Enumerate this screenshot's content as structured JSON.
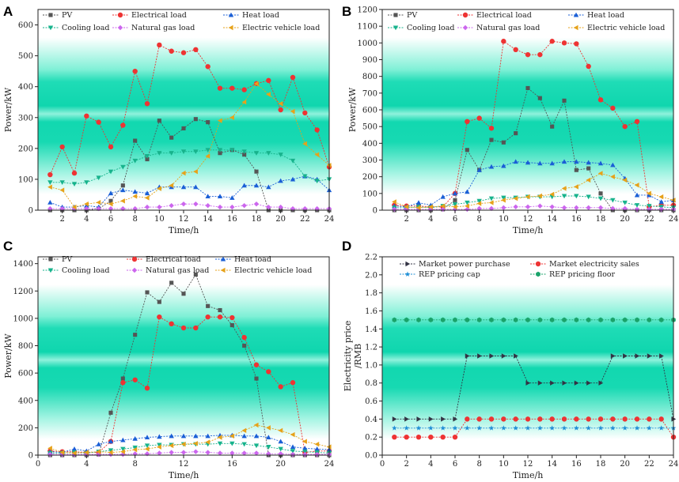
{
  "chart_data": [
    {
      "type": "line",
      "panel": "A",
      "xlabel": "Time/h",
      "ylabel": "Power/kW",
      "xlim": [
        0,
        24
      ],
      "ylim": [
        0,
        650
      ],
      "xticks": [
        "2",
        "4",
        "6",
        "8",
        "10",
        "12",
        "14",
        "16",
        "18",
        "20",
        "22",
        "24"
      ],
      "yticks": [
        "0",
        "100",
        "200",
        "300",
        "400",
        "500",
        "600"
      ],
      "x": [
        1,
        2,
        3,
        4,
        5,
        6,
        7,
        8,
        9,
        10,
        11,
        12,
        13,
        14,
        15,
        16,
        17,
        18,
        19,
        20,
        21,
        22,
        23,
        24
      ],
      "series": [
        {
          "name": "PV",
          "color": "#555555",
          "marker": "square",
          "values": [
            0,
            0,
            0,
            0,
            5,
            30,
            80,
            225,
            165,
            290,
            235,
            265,
            295,
            285,
            185,
            195,
            180,
            125,
            0,
            0,
            0,
            0,
            0,
            0
          ]
        },
        {
          "name": "Electrical load",
          "color": "#ee3333",
          "marker": "circle",
          "values": [
            115,
            205,
            120,
            305,
            285,
            205,
            275,
            450,
            345,
            535,
            515,
            510,
            520,
            465,
            395,
            395,
            390,
            410,
            420,
            325,
            430,
            315,
            260,
            140
          ]
        },
        {
          "name": "Heat load",
          "color": "#1a5fd6",
          "marker": "triangle-up",
          "values": [
            25,
            10,
            10,
            15,
            10,
            55,
            65,
            60,
            55,
            75,
            75,
            75,
            75,
            45,
            45,
            40,
            80,
            80,
            75,
            95,
            100,
            110,
            100,
            65
          ]
        },
        {
          "name": "Cooling load",
          "color": "#17b38c",
          "marker": "triangle-down",
          "values": [
            90,
            90,
            85,
            90,
            105,
            125,
            140,
            160,
            175,
            185,
            185,
            190,
            190,
            195,
            195,
            195,
            190,
            185,
            185,
            180,
            160,
            110,
            95,
            100
          ]
        },
        {
          "name": "Natural gas load",
          "color": "#cc66ee",
          "marker": "diamond",
          "values": [
            5,
            5,
            5,
            5,
            5,
            5,
            5,
            5,
            10,
            10,
            15,
            20,
            20,
            15,
            10,
            10,
            15,
            20,
            10,
            10,
            5,
            5,
            5,
            5
          ]
        },
        {
          "name": "Electric vehicle load",
          "color": "#e6a21a",
          "marker": "triangle-left",
          "values": [
            75,
            65,
            10,
            20,
            25,
            20,
            30,
            45,
            40,
            70,
            80,
            120,
            125,
            175,
            290,
            300,
            350,
            410,
            375,
            345,
            320,
            215,
            180,
            145
          ]
        }
      ]
    },
    {
      "type": "line",
      "panel": "B",
      "xlabel": "Time/h",
      "ylabel": "Power/kW",
      "xlim": [
        0,
        24
      ],
      "ylim": [
        0,
        1200
      ],
      "xticks": [
        "2",
        "4",
        "6",
        "8",
        "10",
        "12",
        "14",
        "16",
        "18",
        "20",
        "22",
        "24"
      ],
      "yticks": [
        "0",
        "100",
        "200",
        "300",
        "400",
        "500",
        "600",
        "700",
        "800",
        "900",
        "1000",
        "1100",
        "1200"
      ],
      "x": [
        1,
        2,
        3,
        4,
        5,
        6,
        7,
        8,
        9,
        10,
        11,
        12,
        13,
        14,
        15,
        16,
        17,
        18,
        19,
        20,
        21,
        22,
        23,
        24
      ],
      "series": [
        {
          "name": "PV",
          "color": "#555555",
          "marker": "square",
          "values": [
            0,
            0,
            0,
            0,
            5,
            60,
            360,
            240,
            420,
            405,
            460,
            730,
            670,
            500,
            655,
            240,
            250,
            100,
            0,
            0,
            0,
            0,
            0,
            0
          ]
        },
        {
          "name": "Electrical load",
          "color": "#ee3333",
          "marker": "circle",
          "values": [
            30,
            25,
            25,
            20,
            20,
            100,
            530,
            550,
            490,
            1010,
            960,
            930,
            930,
            1010,
            1000,
            995,
            860,
            660,
            610,
            500,
            530,
            20,
            30,
            30
          ]
        },
        {
          "name": "Heat load",
          "color": "#1a5fd6",
          "marker": "triangle-up",
          "values": [
            25,
            20,
            45,
            30,
            80,
            100,
            110,
            240,
            260,
            265,
            290,
            285,
            280,
            280,
            290,
            290,
            285,
            280,
            270,
            190,
            90,
            90,
            50,
            60
          ]
        },
        {
          "name": "Cooling load",
          "color": "#17b38c",
          "marker": "triangle-down",
          "values": [
            15,
            15,
            20,
            15,
            25,
            35,
            45,
            55,
            70,
            75,
            75,
            80,
            80,
            80,
            85,
            85,
            80,
            70,
            60,
            45,
            30,
            25,
            20,
            15
          ]
        },
        {
          "name": "Natural gas load",
          "color": "#cc66ee",
          "marker": "diamond",
          "values": [
            5,
            5,
            5,
            5,
            5,
            5,
            5,
            10,
            10,
            15,
            20,
            20,
            25,
            20,
            15,
            15,
            15,
            15,
            10,
            10,
            5,
            5,
            5,
            5
          ]
        },
        {
          "name": "Electric vehicle load",
          "color": "#e6a21a",
          "marker": "triangle-left",
          "values": [
            50,
            20,
            15,
            20,
            25,
            20,
            25,
            40,
            45,
            60,
            70,
            80,
            85,
            95,
            130,
            140,
            180,
            220,
            200,
            180,
            150,
            100,
            80,
            60
          ]
        }
      ]
    },
    {
      "type": "line",
      "panel": "C",
      "xlabel": "Time/h",
      "ylabel": "Power/kW",
      "xlim": [
        0,
        24
      ],
      "ylim": [
        0,
        1450
      ],
      "xticks": [
        "0",
        "4",
        "8",
        "12",
        "16",
        "20",
        "24"
      ],
      "yticks": [
        "0",
        "200",
        "400",
        "600",
        "800",
        "1000",
        "1200",
        "1400"
      ],
      "x": [
        1,
        2,
        3,
        4,
        5,
        6,
        7,
        8,
        9,
        10,
        11,
        12,
        13,
        14,
        15,
        16,
        17,
        18,
        19,
        20,
        21,
        22,
        23,
        24
      ],
      "series": [
        {
          "name": "PV",
          "color": "#555555",
          "marker": "square",
          "values": [
            0,
            0,
            0,
            0,
            5,
            310,
            560,
            880,
            1190,
            1120,
            1260,
            1180,
            1320,
            1090,
            1060,
            950,
            800,
            560,
            0,
            0,
            0,
            0,
            0,
            0
          ]
        },
        {
          "name": "Electrical load",
          "color": "#ee3333",
          "marker": "circle",
          "values": [
            30,
            25,
            25,
            20,
            20,
            100,
            530,
            550,
            490,
            1010,
            960,
            930,
            930,
            1010,
            1010,
            1005,
            860,
            660,
            610,
            500,
            530,
            20,
            30,
            30
          ]
        },
        {
          "name": "Heat load",
          "color": "#1a5fd6",
          "marker": "triangle-up",
          "values": [
            25,
            20,
            45,
            30,
            80,
            100,
            110,
            120,
            130,
            135,
            140,
            140,
            140,
            140,
            145,
            145,
            140,
            140,
            130,
            100,
            60,
            50,
            45,
            40
          ]
        },
        {
          "name": "Cooling load",
          "color": "#17b38c",
          "marker": "triangle-down",
          "values": [
            15,
            15,
            20,
            15,
            25,
            35,
            45,
            55,
            70,
            75,
            75,
            80,
            80,
            80,
            85,
            85,
            80,
            70,
            60,
            45,
            30,
            25,
            20,
            15
          ]
        },
        {
          "name": "Natural gas load",
          "color": "#cc66ee",
          "marker": "diamond",
          "values": [
            5,
            5,
            5,
            5,
            5,
            5,
            5,
            10,
            10,
            15,
            20,
            20,
            25,
            20,
            15,
            15,
            15,
            15,
            10,
            10,
            5,
            5,
            5,
            5
          ]
        },
        {
          "name": "Electric vehicle load",
          "color": "#e6a21a",
          "marker": "triangle-left",
          "values": [
            50,
            20,
            15,
            20,
            25,
            20,
            25,
            40,
            45,
            60,
            70,
            80,
            85,
            95,
            130,
            140,
            180,
            220,
            200,
            180,
            150,
            100,
            80,
            60
          ]
        }
      ]
    },
    {
      "type": "line",
      "panel": "D",
      "xlabel": "Time/h",
      "ylabel": "Electricity price /RMB",
      "ylabel_lines": [
        "Electricity price",
        "/RMB"
      ],
      "xlim": [
        0,
        24
      ],
      "ylim": [
        0,
        2.2
      ],
      "xticks": [
        "0",
        "2",
        "4",
        "6",
        "8",
        "10",
        "12",
        "14",
        "16",
        "18",
        "20",
        "22",
        "24"
      ],
      "yticks": [
        "0.0",
        "0.2",
        "0.4",
        "0.6",
        "0.8",
        "1.0",
        "1.2",
        "1.4",
        "1.6",
        "1.8",
        "2.0",
        "2.2"
      ],
      "x": [
        1,
        2,
        3,
        4,
        5,
        6,
        7,
        8,
        9,
        10,
        11,
        12,
        13,
        14,
        15,
        16,
        17,
        18,
        19,
        20,
        21,
        22,
        23,
        24
      ],
      "series": [
        {
          "name": "Market power purchase",
          "color": "#333344",
          "marker": "triangle-right",
          "values": [
            0.4,
            0.4,
            0.4,
            0.4,
            0.4,
            0.4,
            1.1,
            1.1,
            1.1,
            1.1,
            1.1,
            0.8,
            0.8,
            0.8,
            0.8,
            0.8,
            0.8,
            0.8,
            1.1,
            1.1,
            1.1,
            1.1,
            1.1,
            0.4
          ]
        },
        {
          "name": "Market electricity sales",
          "color": "#ee3333",
          "marker": "circle",
          "values": [
            0.2,
            0.2,
            0.2,
            0.2,
            0.2,
            0.2,
            0.4,
            0.4,
            0.4,
            0.4,
            0.4,
            0.4,
            0.4,
            0.4,
            0.4,
            0.4,
            0.4,
            0.4,
            0.4,
            0.4,
            0.4,
            0.4,
            0.4,
            0.2
          ]
        },
        {
          "name": "REP pricing cap",
          "color": "#1f8fd6",
          "marker": "star",
          "values": [
            0.3,
            0.3,
            0.3,
            0.3,
            0.3,
            0.3,
            0.3,
            0.3,
            0.3,
            0.3,
            0.3,
            0.3,
            0.3,
            0.3,
            0.3,
            0.3,
            0.3,
            0.3,
            0.3,
            0.3,
            0.3,
            0.3,
            0.3,
            0.3
          ]
        },
        {
          "name": "REP pricing floor",
          "color": "#1aa36a",
          "marker": "hexagon",
          "values": [
            1.5,
            1.5,
            1.5,
            1.5,
            1.5,
            1.5,
            1.5,
            1.5,
            1.5,
            1.5,
            1.5,
            1.5,
            1.5,
            1.5,
            1.5,
            1.5,
            1.5,
            1.5,
            1.5,
            1.5,
            1.5,
            1.5,
            1.5,
            1.5
          ]
        }
      ]
    }
  ]
}
